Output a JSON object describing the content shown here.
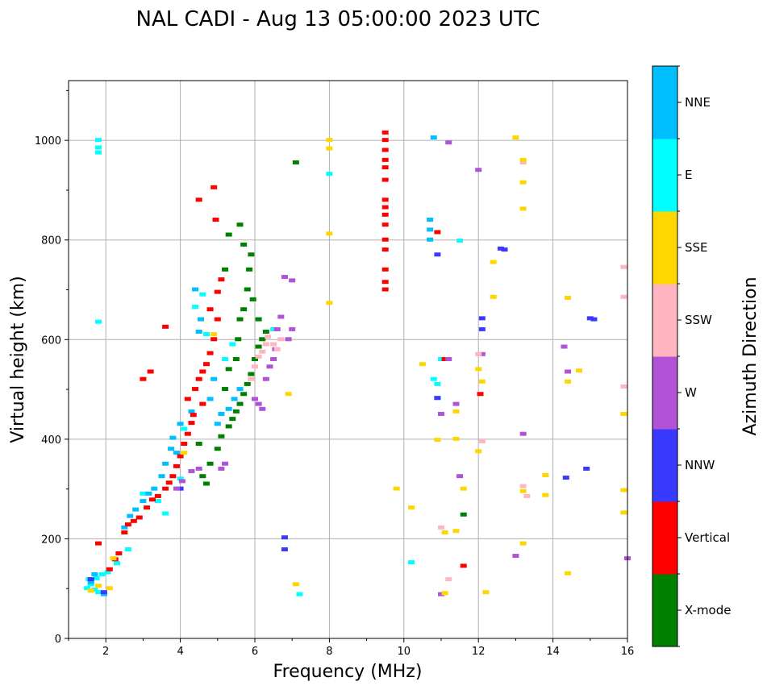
{
  "chart_data": {
    "type": "scatter",
    "title": "NAL CADI - Aug 13 05:00:00 2023 UTC",
    "xlabel": "Frequency (MHz)",
    "ylabel": "Virtual height (km)",
    "xlim": [
      1,
      16
    ],
    "ylim": [
      0,
      1120
    ],
    "xticks": [
      "2",
      "4",
      "6",
      "8",
      "10",
      "12",
      "14",
      "16"
    ],
    "yticks": [
      "0",
      "200",
      "400",
      "600",
      "800",
      "1000"
    ],
    "grid": true,
    "colorbar": {
      "label": "Azimuth Direction",
      "categories": [
        {
          "name": "X-mode",
          "color": "#008000"
        },
        {
          "name": "Vertical",
          "color": "#ff0000"
        },
        {
          "name": "NNW",
          "color": "#3a3aff"
        },
        {
          "name": "W",
          "color": "#b153d6"
        },
        {
          "name": "SSW",
          "color": "#ffb6c1"
        },
        {
          "name": "SSE",
          "color": "#ffd700"
        },
        {
          "name": "E",
          "color": "#00ffff"
        },
        {
          "name": "NNE",
          "color": "#00bfff"
        }
      ]
    },
    "traces": [
      {
        "name": "E",
        "points": [
          [
            1.5,
            100
          ],
          [
            1.55,
            118
          ],
          [
            1.6,
            108
          ],
          [
            1.7,
            97
          ],
          [
            1.75,
            120
          ],
          [
            1.8,
            92
          ],
          [
            1.9,
            128
          ],
          [
            2.05,
            132
          ],
          [
            2.3,
            150
          ],
          [
            2.6,
            178
          ],
          [
            1.8,
            1000
          ],
          [
            1.8,
            985
          ],
          [
            1.8,
            975
          ],
          [
            1.8,
            635
          ],
          [
            3.0,
            290
          ],
          [
            3.4,
            275
          ],
          [
            3.6,
            250
          ],
          [
            4.0,
            320
          ],
          [
            4.1,
            420
          ],
          [
            4.4,
            665
          ],
          [
            4.6,
            690
          ],
          [
            4.7,
            610
          ],
          [
            5.2,
            560
          ],
          [
            5.4,
            590
          ],
          [
            5.6,
            470
          ],
          [
            6.5,
            620
          ],
          [
            7.2,
            88
          ],
          [
            8.0,
            932
          ],
          [
            10.8,
            520
          ],
          [
            10.9,
            510
          ],
          [
            11.0,
            560
          ],
          [
            10.2,
            152
          ],
          [
            11.5,
            798
          ]
        ]
      },
      {
        "name": "NNE",
        "points": [
          [
            1.6,
            112
          ],
          [
            1.7,
            128
          ],
          [
            1.95,
            88
          ],
          [
            2.5,
            222
          ],
          [
            2.65,
            245
          ],
          [
            2.8,
            258
          ],
          [
            3.0,
            275
          ],
          [
            3.15,
            290
          ],
          [
            3.3,
            300
          ],
          [
            3.5,
            325
          ],
          [
            3.6,
            350
          ],
          [
            3.75,
            380
          ],
          [
            3.8,
            402
          ],
          [
            3.9,
            372
          ],
          [
            4.0,
            430
          ],
          [
            4.3,
            455
          ],
          [
            4.4,
            700
          ],
          [
            4.5,
            615
          ],
          [
            4.55,
            640
          ],
          [
            4.9,
            520
          ],
          [
            5.0,
            430
          ],
          [
            5.1,
            450
          ],
          [
            5.3,
            460
          ],
          [
            5.45,
            480
          ],
          [
            5.6,
            500
          ],
          [
            4.8,
            480
          ],
          [
            10.7,
            800
          ],
          [
            10.7,
            820
          ],
          [
            10.7,
            840
          ],
          [
            10.8,
            1005
          ],
          [
            10.9,
            482
          ]
        ]
      },
      {
        "name": "Vertical",
        "points": [
          [
            1.8,
            190
          ],
          [
            2.1,
            138
          ],
          [
            2.25,
            158
          ],
          [
            2.35,
            170
          ],
          [
            2.5,
            212
          ],
          [
            2.6,
            228
          ],
          [
            2.75,
            235
          ],
          [
            2.9,
            242
          ],
          [
            3.1,
            262
          ],
          [
            3.25,
            278
          ],
          [
            3.4,
            285
          ],
          [
            3.6,
            300
          ],
          [
            3.7,
            312
          ],
          [
            3.8,
            325
          ],
          [
            3.9,
            345
          ],
          [
            4.0,
            365
          ],
          [
            4.1,
            390
          ],
          [
            4.2,
            410
          ],
          [
            4.3,
            432
          ],
          [
            4.35,
            448
          ],
          [
            4.4,
            500
          ],
          [
            4.5,
            520
          ],
          [
            4.6,
            535
          ],
          [
            4.7,
            550
          ],
          [
            4.8,
            572
          ],
          [
            4.9,
            600
          ],
          [
            5.0,
            640
          ],
          [
            3.0,
            520
          ],
          [
            3.2,
            535
          ],
          [
            3.6,
            625
          ],
          [
            4.5,
            880
          ],
          [
            4.9,
            905
          ],
          [
            4.95,
            840
          ],
          [
            5.1,
            720
          ],
          [
            5.0,
            695
          ],
          [
            4.8,
            660
          ],
          [
            4.2,
            480
          ],
          [
            4.6,
            470
          ],
          [
            9.5,
            1015
          ],
          [
            9.5,
            1000
          ],
          [
            9.5,
            980
          ],
          [
            9.5,
            960
          ],
          [
            9.5,
            945
          ],
          [
            9.5,
            920
          ],
          [
            9.5,
            880
          ],
          [
            9.5,
            865
          ],
          [
            9.5,
            850
          ],
          [
            9.5,
            830
          ],
          [
            9.5,
            800
          ],
          [
            9.5,
            780
          ],
          [
            9.5,
            740
          ],
          [
            9.5,
            715
          ],
          [
            9.5,
            700
          ],
          [
            11.6,
            145
          ],
          [
            12.05,
            490
          ],
          [
            10.9,
            815
          ],
          [
            11.1,
            560
          ]
        ]
      },
      {
        "name": "X-mode",
        "points": [
          [
            4.6,
            325
          ],
          [
            4.8,
            350
          ],
          [
            5.0,
            380
          ],
          [
            5.1,
            405
          ],
          [
            5.3,
            425
          ],
          [
            5.4,
            440
          ],
          [
            5.5,
            455
          ],
          [
            5.6,
            470
          ],
          [
            5.7,
            490
          ],
          [
            5.8,
            510
          ],
          [
            5.9,
            530
          ],
          [
            6.0,
            560
          ],
          [
            6.1,
            585
          ],
          [
            6.2,
            600
          ],
          [
            6.3,
            615
          ],
          [
            5.2,
            500
          ],
          [
            5.3,
            540
          ],
          [
            5.5,
            560
          ],
          [
            5.55,
            600
          ],
          [
            5.6,
            640
          ],
          [
            5.7,
            660
          ],
          [
            5.8,
            700
          ],
          [
            5.85,
            740
          ],
          [
            5.9,
            770
          ],
          [
            5.7,
            790
          ],
          [
            5.6,
            830
          ],
          [
            5.3,
            810
          ],
          [
            5.2,
            740
          ],
          [
            5.95,
            680
          ],
          [
            6.1,
            640
          ],
          [
            7.1,
            955
          ],
          [
            4.7,
            310
          ],
          [
            11.6,
            248
          ],
          [
            4.5,
            390
          ]
        ]
      },
      {
        "name": "NNW",
        "points": [
          [
            1.6,
            118
          ],
          [
            1.95,
            92
          ],
          [
            6.8,
            202
          ],
          [
            6.8,
            178
          ],
          [
            10.9,
            770
          ],
          [
            12.1,
            642
          ],
          [
            12.1,
            620
          ],
          [
            12.6,
            782
          ],
          [
            12.7,
            780
          ],
          [
            14.35,
            322
          ],
          [
            14.9,
            340
          ],
          [
            15.0,
            642
          ],
          [
            15.1,
            640
          ],
          [
            10.9,
            482
          ],
          [
            4.0,
            300
          ]
        ]
      },
      {
        "name": "W",
        "points": [
          [
            3.9,
            300
          ],
          [
            4.05,
            315
          ],
          [
            4.3,
            335
          ],
          [
            4.5,
            340
          ],
          [
            5.1,
            340
          ],
          [
            5.2,
            350
          ],
          [
            6.0,
            480
          ],
          [
            6.1,
            470
          ],
          [
            6.2,
            460
          ],
          [
            6.3,
            520
          ],
          [
            6.4,
            545
          ],
          [
            6.5,
            560
          ],
          [
            6.55,
            580
          ],
          [
            6.6,
            620
          ],
          [
            6.7,
            645
          ],
          [
            6.9,
            600
          ],
          [
            7.0,
            620
          ],
          [
            6.8,
            725
          ],
          [
            7.0,
            718
          ],
          [
            11.2,
            560
          ],
          [
            11.4,
            470
          ],
          [
            11.5,
            325
          ],
          [
            11.0,
            450
          ],
          [
            12.0,
            940
          ],
          [
            12.1,
            570
          ],
          [
            13.0,
            165
          ],
          [
            13.2,
            410
          ],
          [
            14.3,
            585
          ],
          [
            14.4,
            535
          ],
          [
            16.0,
            160
          ],
          [
            11.0,
            88
          ],
          [
            11.2,
            995
          ]
        ]
      },
      {
        "name": "SSW",
        "points": [
          [
            5.9,
            520
          ],
          [
            6.0,
            545
          ],
          [
            6.1,
            565
          ],
          [
            6.2,
            575
          ],
          [
            6.3,
            590
          ],
          [
            6.35,
            605
          ],
          [
            6.5,
            590
          ],
          [
            6.6,
            580
          ],
          [
            6.7,
            600
          ],
          [
            11.2,
            118
          ],
          [
            11.0,
            222
          ],
          [
            12.0,
            570
          ],
          [
            12.1,
            395
          ],
          [
            13.2,
            305
          ],
          [
            13.3,
            285
          ],
          [
            15.9,
            745
          ],
          [
            15.9,
            685
          ],
          [
            15.9,
            505
          ],
          [
            13.2,
            955
          ]
        ]
      },
      {
        "name": "SSE",
        "points": [
          [
            1.6,
            95
          ],
          [
            1.8,
            105
          ],
          [
            2.1,
            100
          ],
          [
            2.2,
            160
          ],
          [
            4.1,
            372
          ],
          [
            4.9,
            610
          ],
          [
            6.9,
            490
          ],
          [
            7.1,
            108
          ],
          [
            8.0,
            1000
          ],
          [
            8.0,
            983
          ],
          [
            8.0,
            812
          ],
          [
            8.0,
            673
          ],
          [
            9.8,
            300
          ],
          [
            10.2,
            262
          ],
          [
            10.5,
            550
          ],
          [
            10.9,
            398
          ],
          [
            11.1,
            90
          ],
          [
            11.1,
            212
          ],
          [
            11.4,
            455
          ],
          [
            11.4,
            215
          ],
          [
            11.4,
            400
          ],
          [
            11.6,
            300
          ],
          [
            12.0,
            540
          ],
          [
            12.1,
            515
          ],
          [
            12.0,
            375
          ],
          [
            12.2,
            92
          ],
          [
            12.4,
            755
          ],
          [
            12.4,
            685
          ],
          [
            13.0,
            1005
          ],
          [
            13.2,
            960
          ],
          [
            13.2,
            915
          ],
          [
            13.2,
            862
          ],
          [
            13.2,
            295
          ],
          [
            13.2,
            190
          ],
          [
            13.8,
            327
          ],
          [
            13.8,
            287
          ],
          [
            14.4,
            683
          ],
          [
            14.4,
            515
          ],
          [
            14.4,
            130
          ],
          [
            14.7,
            537
          ],
          [
            15.9,
            450
          ],
          [
            15.9,
            297
          ],
          [
            15.9,
            252
          ]
        ]
      }
    ]
  }
}
